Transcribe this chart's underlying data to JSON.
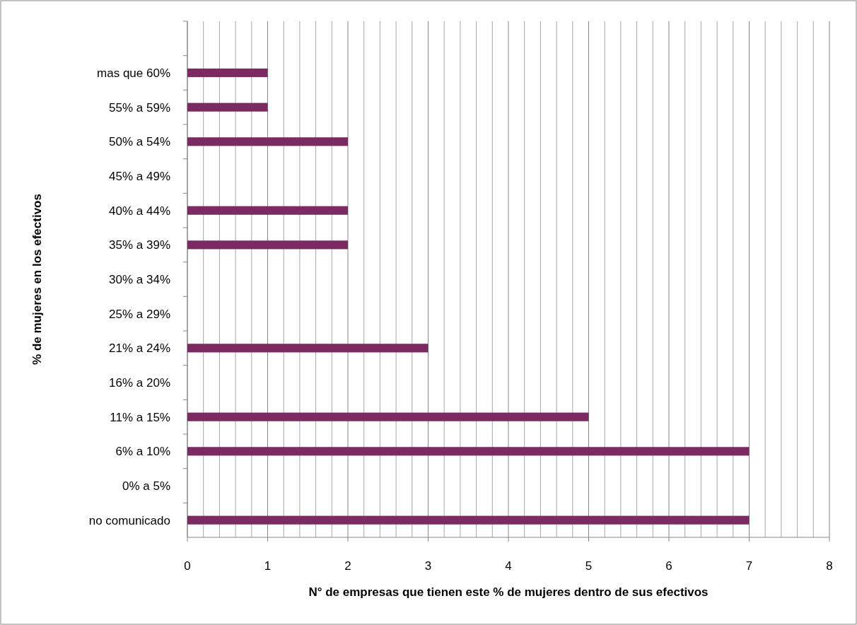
{
  "chart_data": {
    "type": "bar",
    "orientation": "horizontal",
    "xlabel": "N° de empresas que tienen este % de mujeres dentro de sus efectivos",
    "ylabel": "% de mujeres en los efectivos",
    "categories": [
      null,
      "mas que 60%",
      "55% a 59%",
      "50% a 54%",
      "45% a 49%",
      "40% a 44%",
      "35% a 39%",
      "30% a 34%",
      "25% a 29%",
      "21% a 24%",
      "16% a 20%",
      "11% a 15%",
      "6% a 10%",
      "0% a 5%",
      "no comunicado"
    ],
    "values": [
      null,
      1,
      1,
      2,
      null,
      2,
      2,
      null,
      null,
      3,
      null,
      5,
      7,
      null,
      7
    ],
    "color": "#7b2a62",
    "xlim": [
      0,
      8
    ],
    "xticks": [
      0,
      {
        "value": 0.2,
        "label": null
      },
      {
        "value": 0.4,
        "label": null
      },
      {
        "value": 0.6,
        "label": null
      },
      {
        "value": 0.8,
        "label": null
      },
      1,
      {
        "value": 1.2,
        "label": null
      },
      {
        "value": 1.4,
        "label": null
      },
      {
        "value": 1.6,
        "label": null
      },
      {
        "value": 1.8,
        "label": null
      },
      2,
      {
        "value": 2.2,
        "label": null
      },
      {
        "value": 2.4,
        "label": null
      },
      {
        "value": 2.6,
        "label": null
      },
      {
        "value": 2.8,
        "label": null
      },
      3,
      {
        "value": 3.2,
        "label": null
      },
      {
        "value": 3.4,
        "label": null
      },
      {
        "value": 3.6,
        "label": null
      },
      {
        "value": 3.8,
        "label": null
      },
      4,
      {
        "value": 4.2,
        "label": null
      },
      {
        "value": 4.4,
        "label": null
      },
      {
        "value": 4.6,
        "label": null
      },
      {
        "value": 4.8,
        "label": null
      },
      5,
      {
        "value": 5.2,
        "label": null
      },
      {
        "value": 5.4,
        "label": null
      },
      {
        "value": 5.6,
        "label": null
      },
      {
        "value": 5.8,
        "label": null
      },
      6,
      {
        "value": 6.2,
        "label": null
      },
      {
        "value": 6.4,
        "label": null
      },
      {
        "value": 6.6,
        "label": null
      },
      {
        "value": 6.8,
        "label": null
      },
      7,
      {
        "value": 7.2,
        "label": null
      },
      {
        "value": 7.4,
        "label": null
      },
      {
        "value": 7.6,
        "label": null
      },
      {
        "value": 7.8,
        "label": null
      },
      8
    ],
    "grid": "x"
  }
}
